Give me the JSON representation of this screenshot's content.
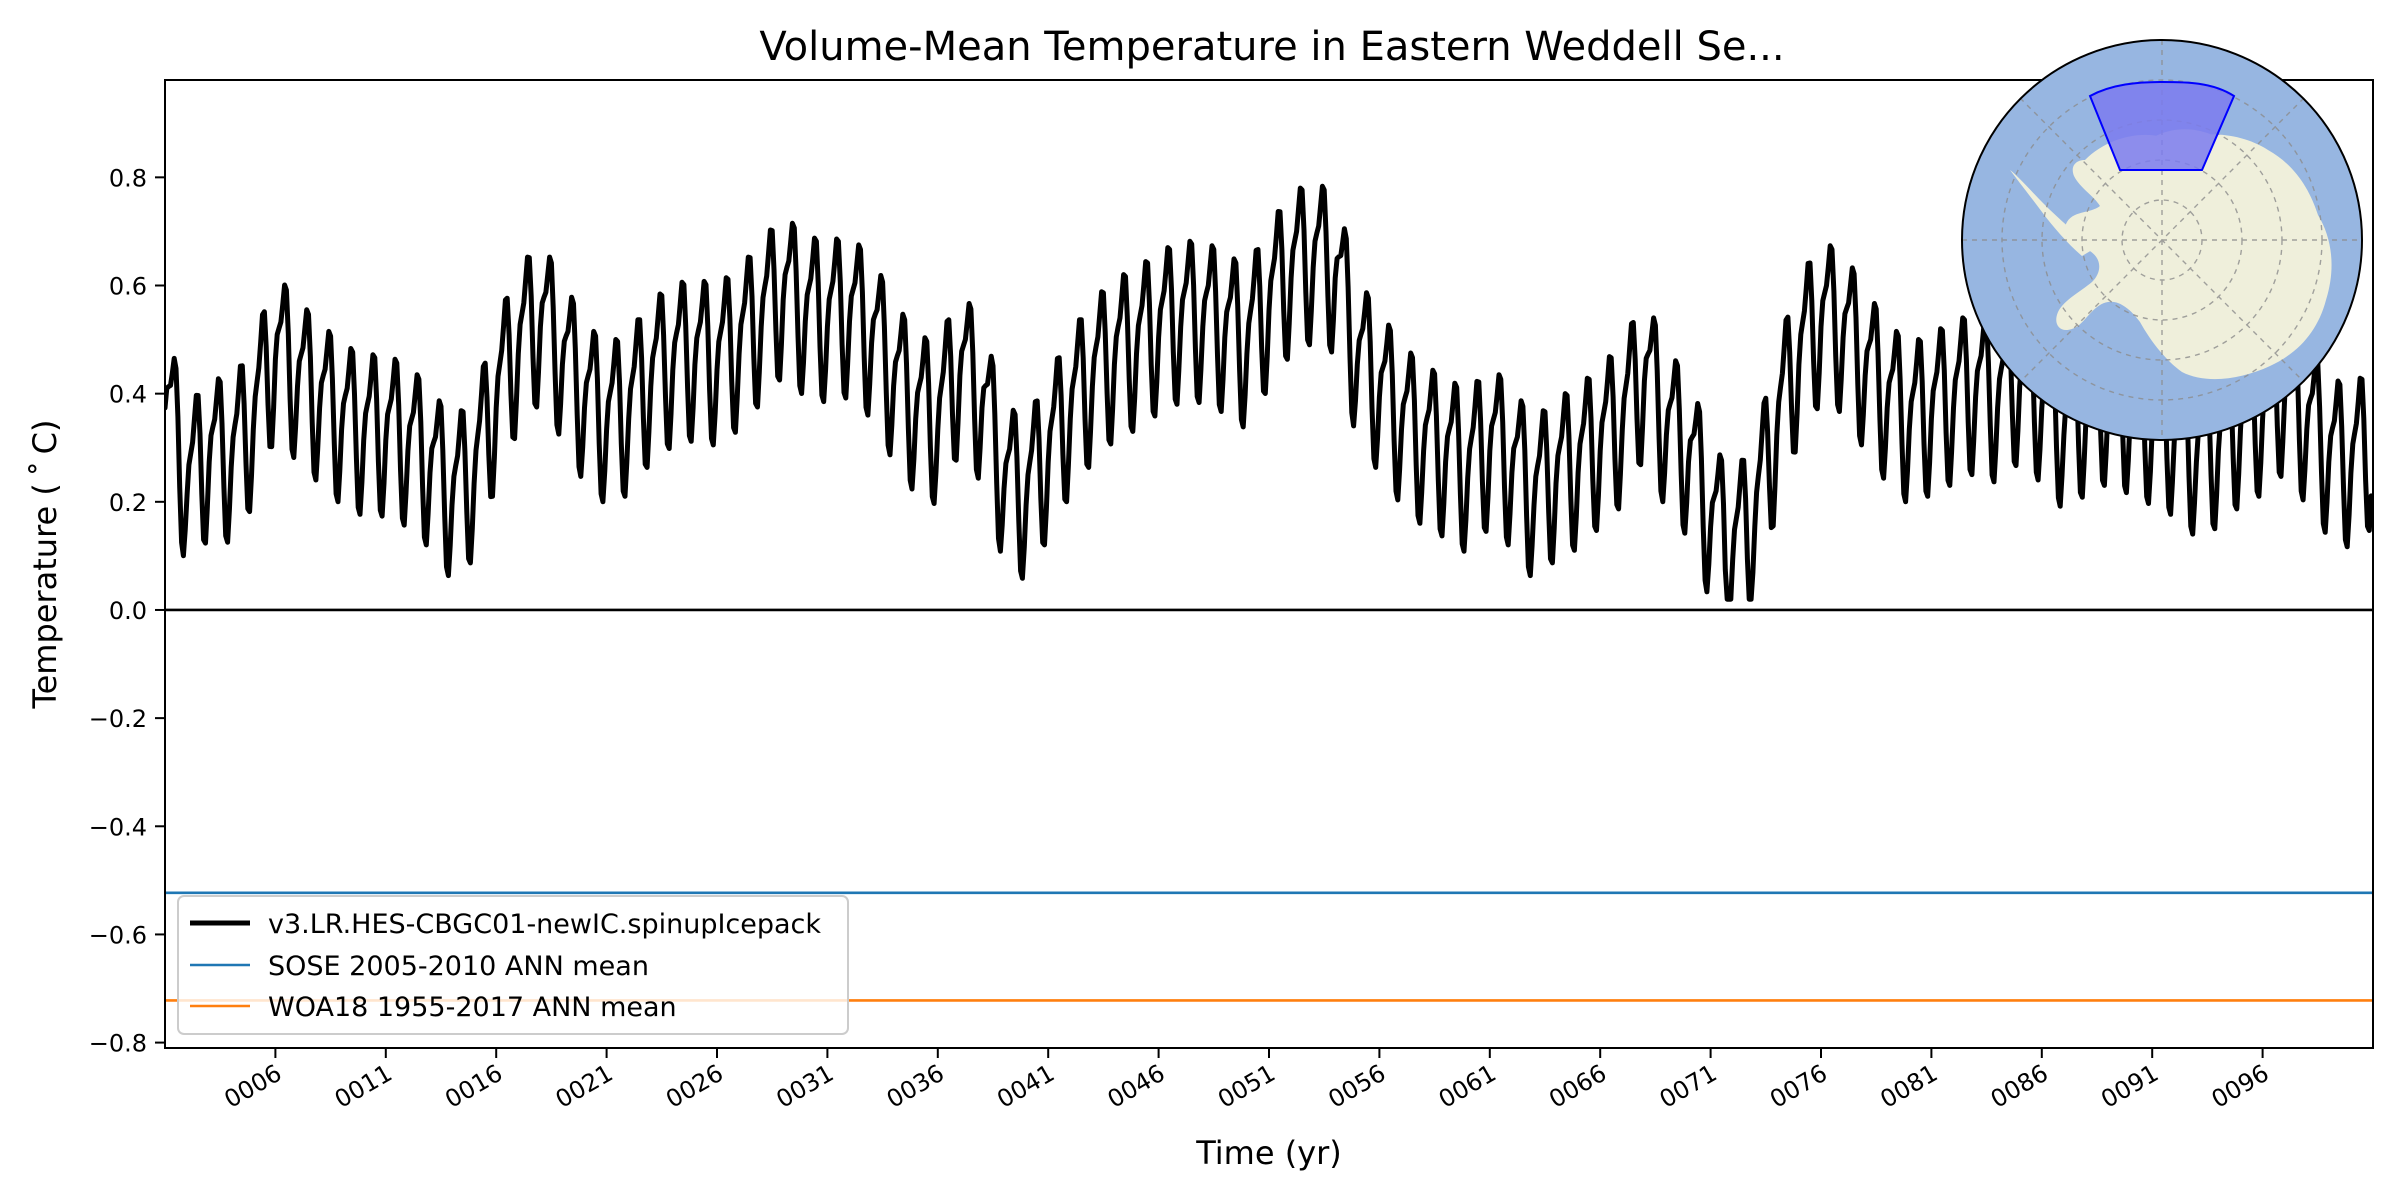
{
  "chart_data": {
    "type": "line",
    "title": "Volume-Mean Temperature in Eastern Weddell Se...",
    "xlabel": "Time (yr)",
    "ylabel": "Temperature ($^\\circ$C)",
    "ylabel_display": "Temperature ( ˚ C)",
    "xlim": [
      1,
      101
    ],
    "ylim": [
      -0.81,
      0.98
    ],
    "x_ticks": [
      6,
      11,
      16,
      21,
      26,
      31,
      36,
      41,
      46,
      51,
      56,
      61,
      66,
      71,
      76,
      81,
      86,
      91,
      96
    ],
    "x_tick_labels": [
      "0006",
      "0011",
      "0016",
      "0021",
      "0026",
      "0031",
      "0036",
      "0041",
      "0046",
      "0051",
      "0056",
      "0061",
      "0066",
      "0071",
      "0076",
      "0081",
      "0086",
      "0091",
      "0096"
    ],
    "y_ticks": [
      -0.8,
      -0.6,
      -0.4,
      -0.2,
      0.0,
      0.2,
      0.4,
      0.6,
      0.8
    ],
    "y_tick_labels": [
      "−0.8",
      "−0.6",
      "−0.4",
      "−0.2",
      "0.0",
      "0.2",
      "0.4",
      "0.6",
      "0.8"
    ],
    "zero_line": 0.0,
    "grid": false,
    "legend_position": "lower-left",
    "series": [
      {
        "name": "v3.LR.HES-CBGC01-newIC.spinupIcepack",
        "color": "#000000",
        "style": "thick-line",
        "x_years": [
          1,
          2,
          3,
          4,
          5,
          6,
          7,
          8,
          9,
          10,
          11,
          12,
          13,
          14,
          15,
          16,
          17,
          18,
          19,
          20,
          21,
          22,
          23,
          24,
          25,
          26,
          27,
          28,
          29,
          30,
          31,
          32,
          33,
          34,
          35,
          36,
          37,
          38,
          39,
          40,
          41,
          42,
          43,
          44,
          45,
          46,
          47,
          48,
          49,
          50,
          51,
          52,
          53,
          54,
          55,
          56,
          57,
          58,
          59,
          60,
          61,
          62,
          63,
          64,
          65,
          66,
          67,
          68,
          69,
          70,
          71,
          72,
          73,
          74,
          75,
          76,
          77,
          78,
          79,
          80,
          81,
          82,
          83,
          84,
          85,
          86,
          87,
          88,
          89,
          90,
          91,
          92,
          93,
          94,
          95,
          96,
          97,
          98,
          99,
          100,
          101
        ],
        "annual_mean": [
          0.4,
          0.24,
          0.3,
          0.29,
          0.36,
          0.49,
          0.44,
          0.4,
          0.36,
          0.34,
          0.34,
          0.32,
          0.28,
          0.22,
          0.26,
          0.4,
          0.5,
          0.55,
          0.48,
          0.4,
          0.36,
          0.38,
          0.44,
          0.47,
          0.48,
          0.47,
          0.5,
          0.55,
          0.6,
          0.56,
          0.55,
          0.56,
          0.52,
          0.44,
          0.38,
          0.36,
          0.46,
          0.4,
          0.25,
          0.22,
          0.3,
          0.38,
          0.44,
          0.48,
          0.5,
          0.53,
          0.55,
          0.55,
          0.53,
          0.5,
          0.58,
          0.64,
          0.66,
          0.64,
          0.48,
          0.42,
          0.36,
          0.32,
          0.3,
          0.27,
          0.32,
          0.28,
          0.22,
          0.26,
          0.28,
          0.32,
          0.36,
          0.45,
          0.35,
          0.3,
          0.18,
          0.12,
          0.18,
          0.35,
          0.48,
          0.55,
          0.53,
          0.46,
          0.4,
          0.36,
          0.38,
          0.4,
          0.42,
          0.4,
          0.44,
          0.4,
          0.35,
          0.38,
          0.4,
          0.38,
          0.36,
          0.34,
          0.3,
          0.32,
          0.36,
          0.38,
          0.42,
          0.36,
          0.3,
          0.28,
          0.32
        ],
        "seasonal_amplitude": 0.13,
        "observed_min": 0.02,
        "observed_max": 0.8
      },
      {
        "name": "SOSE 2005-2010 ANN mean",
        "color": "#1f77b4",
        "style": "horizontal-line",
        "value": -0.523
      },
      {
        "name": "WOA18 1955-2017 ANN mean",
        "color": "#ff7f0e",
        "style": "horizontal-line",
        "value": -0.722
      }
    ]
  },
  "inset_map": {
    "ocean_color": "#97b6e1",
    "land_color": "#efefdb",
    "region_fill": "#7b7bef",
    "region_edge": "#0000ff"
  }
}
